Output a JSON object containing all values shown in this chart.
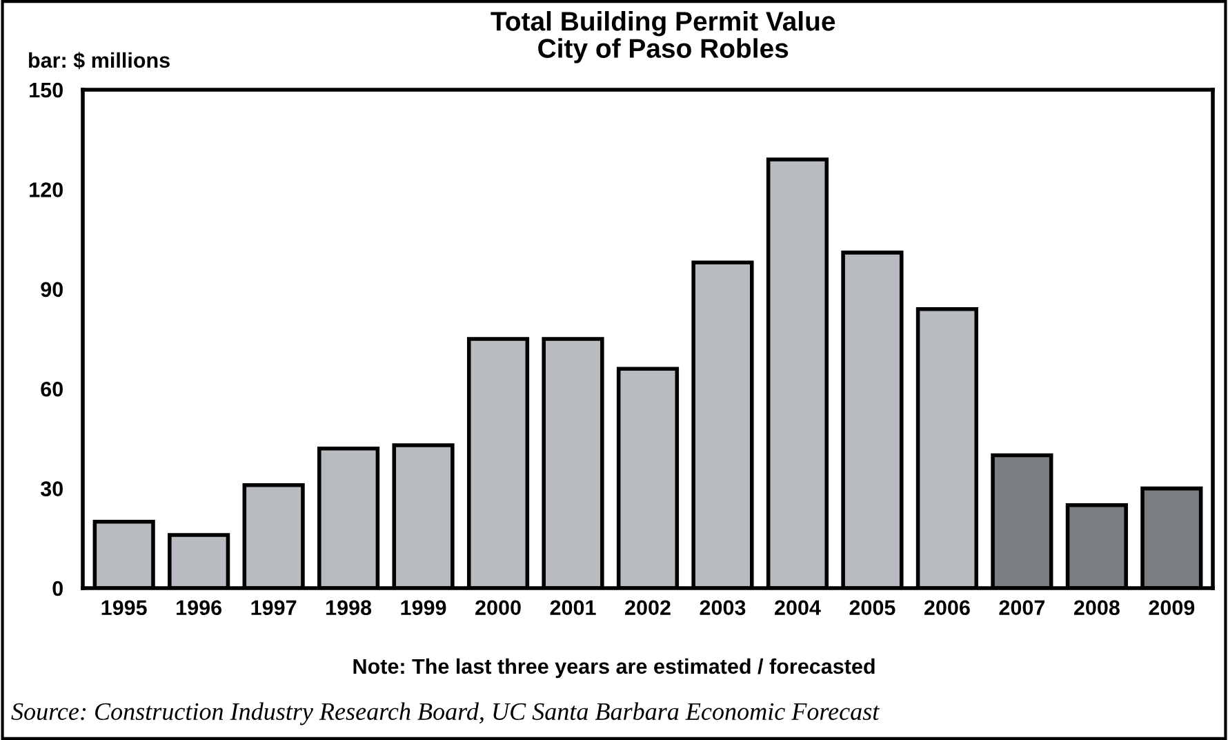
{
  "chart_data": {
    "type": "bar",
    "title": "Total Building Permit Value\nCity of Paso Robles",
    "ylabel": "bar: $ millions",
    "categories": [
      "1995",
      "1996",
      "1997",
      "1998",
      "1999",
      "2000",
      "2001",
      "2002",
      "2003",
      "2004",
      "2005",
      "2006",
      "2007",
      "2008",
      "2009"
    ],
    "values": [
      20,
      16,
      31,
      42,
      43,
      75,
      75,
      66,
      98,
      129,
      101,
      84,
      40,
      25,
      30
    ],
    "colors": [
      "#b8bcc0",
      "#b8bcc0",
      "#b8bcc0",
      "#b8bcc0",
      "#b8bcc0",
      "#b8bcc0",
      "#b8bcc0",
      "#b8bcc0",
      "#b8bcc0",
      "#b8bcc0",
      "#b8bcc0",
      "#b8bcc0",
      "#7b7f82",
      "#7b7f82",
      "#7b7f82"
    ],
    "ylim": [
      0,
      150
    ],
    "yticks": [
      0,
      30,
      60,
      90,
      120,
      150
    ],
    "grid": false,
    "legend": false,
    "annotations": [
      "Note: The last three years are estimated / forecasted",
      "Source: Construction Industry Research Board, UC Santa Barbara Economic Forecast"
    ]
  }
}
